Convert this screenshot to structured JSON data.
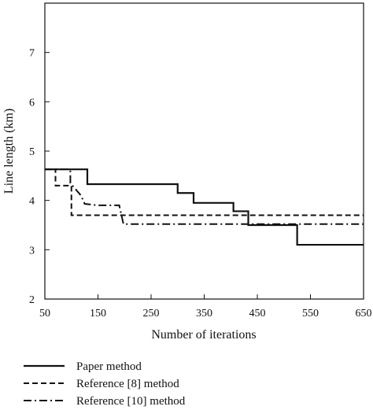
{
  "chart_data": {
    "type": "line",
    "title": "",
    "xlabel": "Number of iterations",
    "ylabel": "Line length (km)",
    "xlim": [
      50,
      650
    ],
    "ylim": [
      2,
      8
    ],
    "xticks": [
      50,
      150,
      250,
      350,
      450,
      550,
      650
    ],
    "yticks": [
      2,
      3,
      4,
      5,
      6,
      7
    ],
    "grid": false,
    "legend_position": "bottom",
    "series": [
      {
        "name": "Paper method",
        "line_style": "solid",
        "step": true,
        "x": [
          50,
          130,
          300,
          330,
          405,
          433,
          525,
          650
        ],
        "y": [
          4.63,
          4.33,
          4.15,
          3.95,
          3.78,
          3.5,
          3.1,
          3.1
        ]
      },
      {
        "name": "Reference [8] method",
        "line_style": "dashed",
        "step": true,
        "x": [
          50,
          70,
          100,
          650
        ],
        "y": [
          4.63,
          4.3,
          3.7,
          3.7
        ]
      },
      {
        "name": "Reference [10] method",
        "line_style": "dashdot",
        "step": false,
        "x": [
          50,
          98,
          98,
          118,
          125,
          150,
          190,
          198,
          650
        ],
        "y": [
          4.63,
          4.63,
          4.35,
          4.1,
          3.93,
          3.9,
          3.9,
          3.52,
          3.52
        ]
      }
    ]
  }
}
